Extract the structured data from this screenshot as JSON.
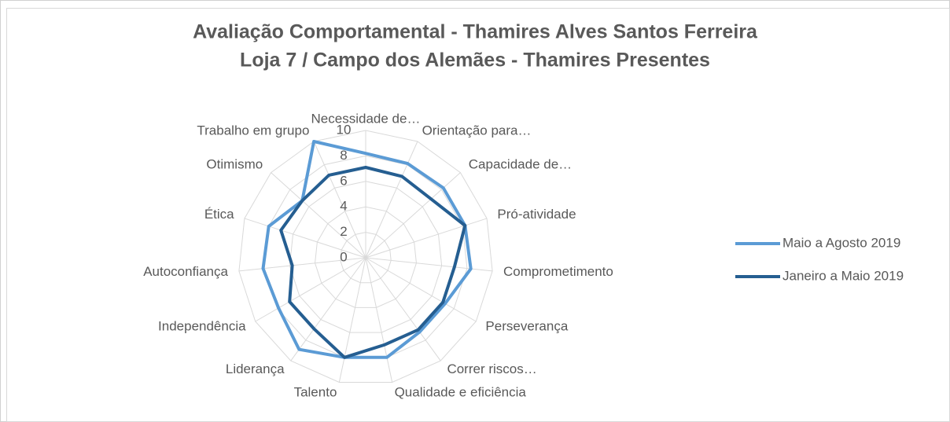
{
  "chart_data": {
    "type": "radar",
    "title": "Avaliação Comportamental - Thamires Alves Santos Ferreira",
    "subtitle": "Loja 7 / Campo dos Alemães - Thamires Presentes",
    "categories": [
      "Necessidade de…",
      "Orientação para…",
      "Capacidade de…",
      "Pró-atividade",
      "Comprometimento",
      "Perseverança",
      "Correr riscos…",
      "Qualidade e eficiência",
      "Talento",
      "Liderança",
      "Independência",
      "Autoconfiança",
      "Ética",
      "Otimismo",
      "Trabalho em grupo"
    ],
    "series": [
      {
        "name": "Maio a Agosto 2019",
        "color": "#5b9bd5",
        "values": [
          8.2,
          8.1,
          8.2,
          8.2,
          8.3,
          7.2,
          7.2,
          8.0,
          8.0,
          8.9,
          7.9,
          8.1,
          8.0,
          6.7,
          10
        ]
      },
      {
        "name": "Janeiro a Maio 2019",
        "color": "#255e91",
        "values": [
          7.1,
          7.0,
          6.9,
          8.2,
          7.0,
          7.0,
          7.0,
          7.0,
          8.0,
          6.9,
          6.9,
          5.8,
          7.0,
          6.7,
          7.1
        ]
      }
    ],
    "ylim": [
      0,
      10
    ],
    "yticks": [
      0,
      2,
      4,
      6,
      8,
      10
    ],
    "grid": true,
    "legend": "right"
  }
}
